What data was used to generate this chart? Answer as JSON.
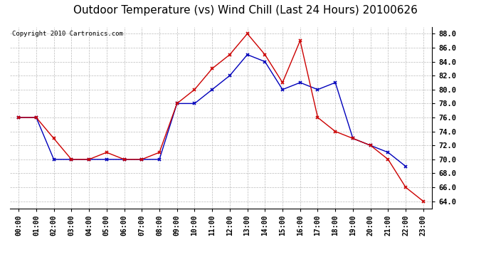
{
  "title": "Outdoor Temperature (vs) Wind Chill (Last 24 Hours) 20100626",
  "copyright": "Copyright 2010 Cartronics.com",
  "hours": [
    "00:00",
    "01:00",
    "02:00",
    "03:00",
    "04:00",
    "05:00",
    "06:00",
    "07:00",
    "08:00",
    "09:00",
    "10:00",
    "11:00",
    "12:00",
    "13:00",
    "14:00",
    "15:00",
    "16:00",
    "17:00",
    "18:00",
    "19:00",
    "20:00",
    "21:00",
    "22:00",
    "23:00"
  ],
  "outdoor_temp": [
    76,
    76,
    73,
    70,
    70,
    71,
    70,
    70,
    71,
    78,
    80,
    83,
    85,
    88,
    85,
    81,
    87,
    76,
    74,
    73,
    72,
    70,
    66,
    64
  ],
  "wind_chill": [
    76,
    76,
    70,
    70,
    70,
    70,
    70,
    70,
    70,
    78,
    78,
    80,
    82,
    85,
    84,
    80,
    81,
    80,
    81,
    73,
    72,
    71,
    69,
    null
  ],
  "temp_color": "#cc0000",
  "wind_color": "#0000bb",
  "marker": "x",
  "ylim": [
    63,
    89
  ],
  "yticks": [
    64.0,
    66.0,
    68.0,
    70.0,
    72.0,
    74.0,
    76.0,
    78.0,
    80.0,
    82.0,
    84.0,
    86.0,
    88.0
  ],
  "bg_color": "#ffffff",
  "grid_color": "#bbbbbb",
  "title_fontsize": 11,
  "label_fontsize": 7.5,
  "copyright_fontsize": 6.5
}
